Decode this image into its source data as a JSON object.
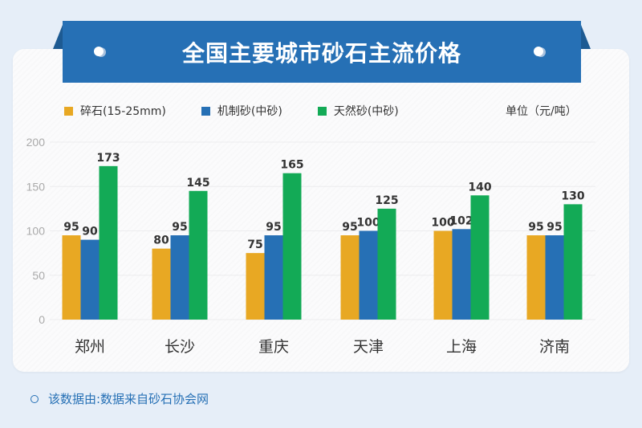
{
  "title": "全国主要城市砂石主流价格",
  "unit": "单位（元/吨）",
  "footnote": "该数据由:数据来自砂石协会网",
  "chart_data": {
    "type": "bar",
    "title": "全国主要城市砂石主流价格",
    "categories": [
      "郑州",
      "长沙",
      "重庆",
      "天津",
      "上海",
      "济南"
    ],
    "series": [
      {
        "name": "碎石(15-25mm)",
        "color": "#e8a823",
        "values": [
          95,
          80,
          75,
          95,
          100,
          95
        ]
      },
      {
        "name": "机制砂(中砂)",
        "color": "#2670b5",
        "values": [
          90,
          95,
          95,
          100,
          102,
          95
        ]
      },
      {
        "name": "天然砂(中砂)",
        "color": "#13aa56",
        "values": [
          173,
          145,
          165,
          125,
          140,
          130
        ]
      }
    ],
    "yticks": [
      0,
      50,
      100,
      150,
      200
    ],
    "ylim": [
      0,
      200
    ],
    "grid": true,
    "legend": "top-left"
  }
}
